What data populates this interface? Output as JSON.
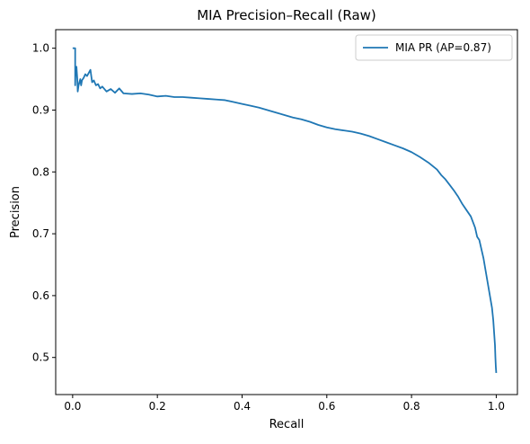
{
  "chart_data": {
    "type": "line",
    "title": "MIA Precision–Recall (Raw)",
    "xlabel": "Recall",
    "ylabel": "Precision",
    "xlim": [
      -0.04,
      1.05
    ],
    "ylim": [
      0.44,
      1.03
    ],
    "xticks": [
      0.0,
      0.2,
      0.4,
      0.6,
      0.8,
      1.0
    ],
    "xtick_labels": [
      "0.0",
      "0.2",
      "0.4",
      "0.6",
      "0.8",
      "1.0"
    ],
    "yticks": [
      0.5,
      0.6,
      0.7,
      0.8,
      0.9,
      1.0
    ],
    "ytick_labels": [
      "0.5",
      "0.6",
      "0.7",
      "0.8",
      "0.9",
      "1.0"
    ],
    "grid": false,
    "legend_position": "top-right",
    "series": [
      {
        "name": "MIA PR (AP=0.87)",
        "color": "#1f77b4",
        "x": [
          0.0,
          0.006,
          0.006,
          0.007,
          0.009,
          0.011,
          0.012,
          0.014,
          0.016,
          0.018,
          0.02,
          0.022,
          0.026,
          0.03,
          0.034,
          0.038,
          0.042,
          0.046,
          0.05,
          0.055,
          0.06,
          0.065,
          0.07,
          0.08,
          0.09,
          0.1,
          0.11,
          0.12,
          0.14,
          0.16,
          0.18,
          0.2,
          0.22,
          0.24,
          0.26,
          0.28,
          0.3,
          0.32,
          0.34,
          0.36,
          0.38,
          0.4,
          0.42,
          0.44,
          0.46,
          0.48,
          0.5,
          0.52,
          0.54,
          0.56,
          0.58,
          0.6,
          0.62,
          0.64,
          0.66,
          0.68,
          0.7,
          0.72,
          0.74,
          0.76,
          0.78,
          0.8,
          0.82,
          0.84,
          0.86,
          0.87,
          0.88,
          0.89,
          0.9,
          0.91,
          0.92,
          0.93,
          0.94,
          0.95,
          0.955,
          0.96,
          0.965,
          0.97,
          0.975,
          0.98,
          0.985,
          0.99,
          0.993,
          0.995,
          0.997,
          0.998,
          0.999,
          1.0
        ],
        "y": [
          1.0,
          1.0,
          0.94,
          0.965,
          0.97,
          0.95,
          0.93,
          0.94,
          0.945,
          0.95,
          0.94,
          0.948,
          0.952,
          0.958,
          0.955,
          0.96,
          0.965,
          0.945,
          0.948,
          0.94,
          0.942,
          0.935,
          0.938,
          0.93,
          0.934,
          0.928,
          0.935,
          0.927,
          0.926,
          0.927,
          0.925,
          0.922,
          0.923,
          0.921,
          0.921,
          0.92,
          0.919,
          0.918,
          0.917,
          0.916,
          0.913,
          0.91,
          0.907,
          0.904,
          0.9,
          0.896,
          0.892,
          0.888,
          0.885,
          0.881,
          0.876,
          0.872,
          0.869,
          0.867,
          0.865,
          0.862,
          0.858,
          0.853,
          0.848,
          0.843,
          0.838,
          0.832,
          0.824,
          0.815,
          0.804,
          0.795,
          0.788,
          0.779,
          0.77,
          0.76,
          0.748,
          0.738,
          0.728,
          0.71,
          0.695,
          0.69,
          0.675,
          0.66,
          0.64,
          0.62,
          0.6,
          0.58,
          0.56,
          0.54,
          0.52,
          0.5,
          0.485,
          0.475
        ]
      }
    ]
  }
}
